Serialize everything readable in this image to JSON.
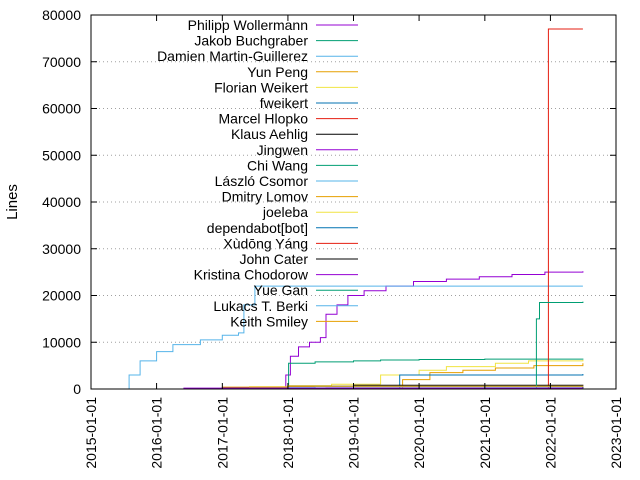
{
  "chart_data": {
    "type": "line",
    "title": "",
    "xlabel": "",
    "ylabel": "Lines",
    "ylim": [
      0,
      80000
    ],
    "xlim": [
      "2015-01-01",
      "2023-01-01"
    ],
    "x_ticks": [
      "2015-01-01",
      "2016-01-01",
      "2017-01-01",
      "2018-01-01",
      "2019-01-01",
      "2020-01-01",
      "2021-01-01",
      "2022-01-01",
      "2023-01-01"
    ],
    "y_ticks": [
      0,
      10000,
      20000,
      30000,
      40000,
      50000,
      60000,
      70000,
      80000
    ],
    "y_tick_labels": [
      "0",
      "10000",
      "20000",
      "30000",
      "40000",
      "50000",
      "60000",
      "70000",
      "80000"
    ],
    "grid": "dotted horizontal",
    "legend_position": "top-left",
    "series": [
      {
        "name": "Philipp Wollermann",
        "color": "#9400d3",
        "points": [
          [
            "2017-12-01",
            0
          ],
          [
            "2017-12-20",
            3000
          ],
          [
            "2018-01-15",
            7000
          ],
          [
            "2018-03-01",
            9000
          ],
          [
            "2018-05-01",
            10000
          ],
          [
            "2018-07-01",
            11000
          ],
          [
            "2018-08-01",
            16000
          ],
          [
            "2018-10-01",
            18000
          ],
          [
            "2018-12-01",
            20000
          ],
          [
            "2019-03-01",
            21000
          ],
          [
            "2019-07-01",
            22000
          ],
          [
            "2019-12-01",
            23000
          ],
          [
            "2020-06-01",
            23500
          ],
          [
            "2020-12-01",
            24000
          ],
          [
            "2021-06-01",
            24500
          ],
          [
            "2021-12-01",
            25000
          ],
          [
            "2022-07-01",
            25200
          ]
        ]
      },
      {
        "name": "Jakob Buchgraber",
        "color": "#009e73",
        "points": [
          [
            "2017-12-15",
            0
          ],
          [
            "2018-01-05",
            5500
          ],
          [
            "2018-06-01",
            5800
          ],
          [
            "2019-01-01",
            6000
          ],
          [
            "2019-06-01",
            6200
          ],
          [
            "2020-01-01",
            6300
          ],
          [
            "2021-01-01",
            6400
          ],
          [
            "2022-07-01",
            6500
          ]
        ]
      },
      {
        "name": "Damien Martin-Guillerez",
        "color": "#56b4e9",
        "points": [
          [
            "2015-07-15",
            0
          ],
          [
            "2015-08-01",
            3000
          ],
          [
            "2015-10-01",
            6000
          ],
          [
            "2016-01-01",
            8000
          ],
          [
            "2016-04-01",
            9500
          ],
          [
            "2016-09-01",
            10500
          ],
          [
            "2017-01-01",
            11500
          ],
          [
            "2017-04-01",
            12000
          ],
          [
            "2017-05-01",
            18000
          ],
          [
            "2017-07-01",
            22000
          ],
          [
            "2019-01-01",
            22000
          ],
          [
            "2022-07-01",
            22000
          ]
        ]
      },
      {
        "name": "Yun Peng",
        "color": "#e69f00",
        "points": [
          [
            "2019-09-01",
            0
          ],
          [
            "2019-10-01",
            2000
          ],
          [
            "2020-03-01",
            3500
          ],
          [
            "2020-09-01",
            4000
          ],
          [
            "2021-03-01",
            4500
          ],
          [
            "2021-10-01",
            5000
          ],
          [
            "2022-07-01",
            5500
          ]
        ]
      },
      {
        "name": "Florian Weikert",
        "color": "#f0e442",
        "points": [
          [
            "2017-04-01",
            0
          ],
          [
            "2017-06-01",
            500
          ],
          [
            "2018-01-01",
            700
          ],
          [
            "2018-09-01",
            1000
          ],
          [
            "2019-06-01",
            3000
          ],
          [
            "2020-01-01",
            4000
          ],
          [
            "2020-06-01",
            4800
          ],
          [
            "2021-03-01",
            5500
          ],
          [
            "2021-09-01",
            6000
          ],
          [
            "2022-07-01",
            6200
          ]
        ]
      },
      {
        "name": "fweikert",
        "color": "#0072b2",
        "points": [
          [
            "2019-09-01",
            0
          ],
          [
            "2019-09-15",
            3000
          ],
          [
            "2022-07-01",
            3200
          ]
        ]
      },
      {
        "name": "Marcel Hlopko",
        "color": "#e51e10",
        "points": [
          [
            "2016-06-01",
            0
          ],
          [
            "2021-12-20",
            0
          ],
          [
            "2021-12-21",
            77000
          ],
          [
            "2022-07-01",
            77000
          ]
        ]
      },
      {
        "name": "Klaus Aehlig",
        "color": "#000000",
        "points": [
          [
            "2016-01-01",
            0
          ],
          [
            "2017-01-01",
            300
          ],
          [
            "2018-01-01",
            600
          ],
          [
            "2019-01-01",
            800
          ],
          [
            "2022-07-01",
            900
          ]
        ]
      },
      {
        "name": "Jingwen",
        "color": "#9400d3",
        "points": [
          [
            "2018-06-01",
            0
          ],
          [
            "2018-08-01",
            200
          ],
          [
            "2022-07-01",
            300
          ]
        ]
      },
      {
        "name": "Chi Wang",
        "color": "#009e73",
        "points": [
          [
            "2021-06-01",
            0
          ],
          [
            "2021-10-01",
            200
          ],
          [
            "2021-10-15",
            15000
          ],
          [
            "2021-11-01",
            18500
          ],
          [
            "2022-07-01",
            18700
          ]
        ]
      },
      {
        "name": "László Csomor",
        "color": "#56b4e9",
        "points": [
          [
            "2017-01-01",
            0
          ],
          [
            "2017-06-01",
            300
          ],
          [
            "2018-06-01",
            500
          ],
          [
            "2022-07-01",
            600
          ]
        ]
      },
      {
        "name": "Dmitry Lomov",
        "color": "#e69f00",
        "points": [
          [
            "2016-06-01",
            0
          ],
          [
            "2017-01-01",
            400
          ],
          [
            "2018-01-01",
            600
          ],
          [
            "2022-07-01",
            700
          ]
        ]
      },
      {
        "name": "joeleba",
        "color": "#f0e442",
        "points": [
          [
            "2018-01-01",
            0
          ],
          [
            "2019-01-01",
            200
          ],
          [
            "2022-07-01",
            300
          ]
        ]
      },
      {
        "name": "dependabot[bot]",
        "color": "#0072b2",
        "points": [
          [
            "2020-06-01",
            0
          ],
          [
            "2021-01-01",
            150
          ],
          [
            "2022-07-01",
            250
          ]
        ]
      },
      {
        "name": "Xùdōng Yáng",
        "color": "#e51e10",
        "points": [
          [
            "2019-01-01",
            0
          ],
          [
            "2022-07-01",
            150
          ]
        ]
      },
      {
        "name": "John Cater",
        "color": "#000000",
        "points": [
          [
            "2018-06-01",
            0
          ],
          [
            "2022-07-01",
            400
          ]
        ]
      },
      {
        "name": "Kristina Chodorow",
        "color": "#9400d3",
        "points": [
          [
            "2015-10-01",
            0
          ],
          [
            "2016-06-01",
            200
          ],
          [
            "2022-07-01",
            250
          ]
        ]
      },
      {
        "name": "Yue Gan",
        "color": "#009e73",
        "points": [
          [
            "2018-01-01",
            0
          ],
          [
            "2022-07-01",
            150
          ]
        ]
      },
      {
        "name": "Lukacs T. Berki",
        "color": "#56b4e9",
        "points": [
          [
            "2016-01-01",
            0
          ],
          [
            "2022-07-01",
            100
          ]
        ]
      },
      {
        "name": "Keith Smiley",
        "color": "#e69f00",
        "points": [
          [
            "2019-06-01",
            0
          ],
          [
            "2022-07-01",
            100
          ]
        ]
      }
    ]
  }
}
